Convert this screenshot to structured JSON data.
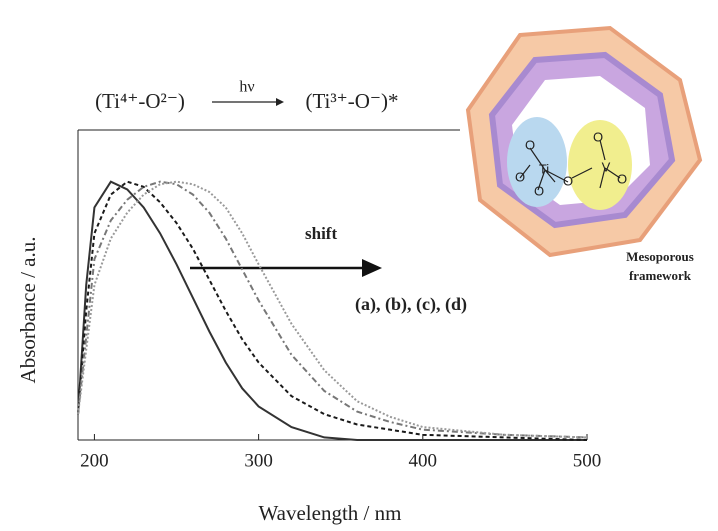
{
  "chart_data": {
    "type": "line",
    "reaction": {
      "reactant": "(Ti⁴⁺-O²⁻)",
      "light": "hν",
      "product": "(Ti³⁺-O⁻)*"
    },
    "x_label": "Wavelength / nm",
    "y_label": "Absorbance / a.u.",
    "annotations": {
      "shift": "shift",
      "samples": "(a), (b), (c), (d)",
      "framework": [
        "Mesoporous",
        "framework"
      ],
      "framework_atoms": [
        "O",
        "Ti",
        "O",
        "O",
        "O",
        "V",
        "O",
        "O"
      ]
    },
    "x": [
      190,
      195,
      200,
      210,
      220,
      230,
      240,
      250,
      260,
      270,
      280,
      290,
      300,
      320,
      340,
      360,
      380,
      400,
      450,
      500
    ],
    "series": [
      {
        "color": "#333333",
        "dash": "none",
        "values": [
          0.1,
          0.6,
          0.9,
          1.0,
          0.97,
          0.9,
          0.8,
          0.68,
          0.55,
          0.42,
          0.3,
          0.2,
          0.13,
          0.05,
          0.01,
          0,
          0,
          0,
          0,
          0
        ]
      },
      {
        "color": "#1a1a1a",
        "dash": "4 3",
        "values": [
          0.1,
          0.5,
          0.8,
          0.95,
          1.0,
          0.98,
          0.92,
          0.84,
          0.74,
          0.62,
          0.5,
          0.39,
          0.3,
          0.17,
          0.1,
          0.06,
          0.04,
          0.02,
          0.01,
          0
        ]
      },
      {
        "color": "#777777",
        "dash": "6 3 2 3",
        "values": [
          0.1,
          0.4,
          0.7,
          0.85,
          0.93,
          0.98,
          1.0,
          0.99,
          0.95,
          0.88,
          0.78,
          0.66,
          0.54,
          0.33,
          0.19,
          0.11,
          0.07,
          0.04,
          0.02,
          0.01
        ]
      },
      {
        "color": "#999999",
        "dash": "2 2",
        "values": [
          0.1,
          0.35,
          0.6,
          0.78,
          0.88,
          0.95,
          0.99,
          1.0,
          0.99,
          0.96,
          0.9,
          0.8,
          0.68,
          0.45,
          0.27,
          0.15,
          0.09,
          0.05,
          0.02,
          0.01
        ]
      }
    ],
    "xlim": [
      190,
      500
    ],
    "xticks": [
      200,
      300,
      400,
      500
    ],
    "ylim": [
      0,
      1.2
    ]
  }
}
